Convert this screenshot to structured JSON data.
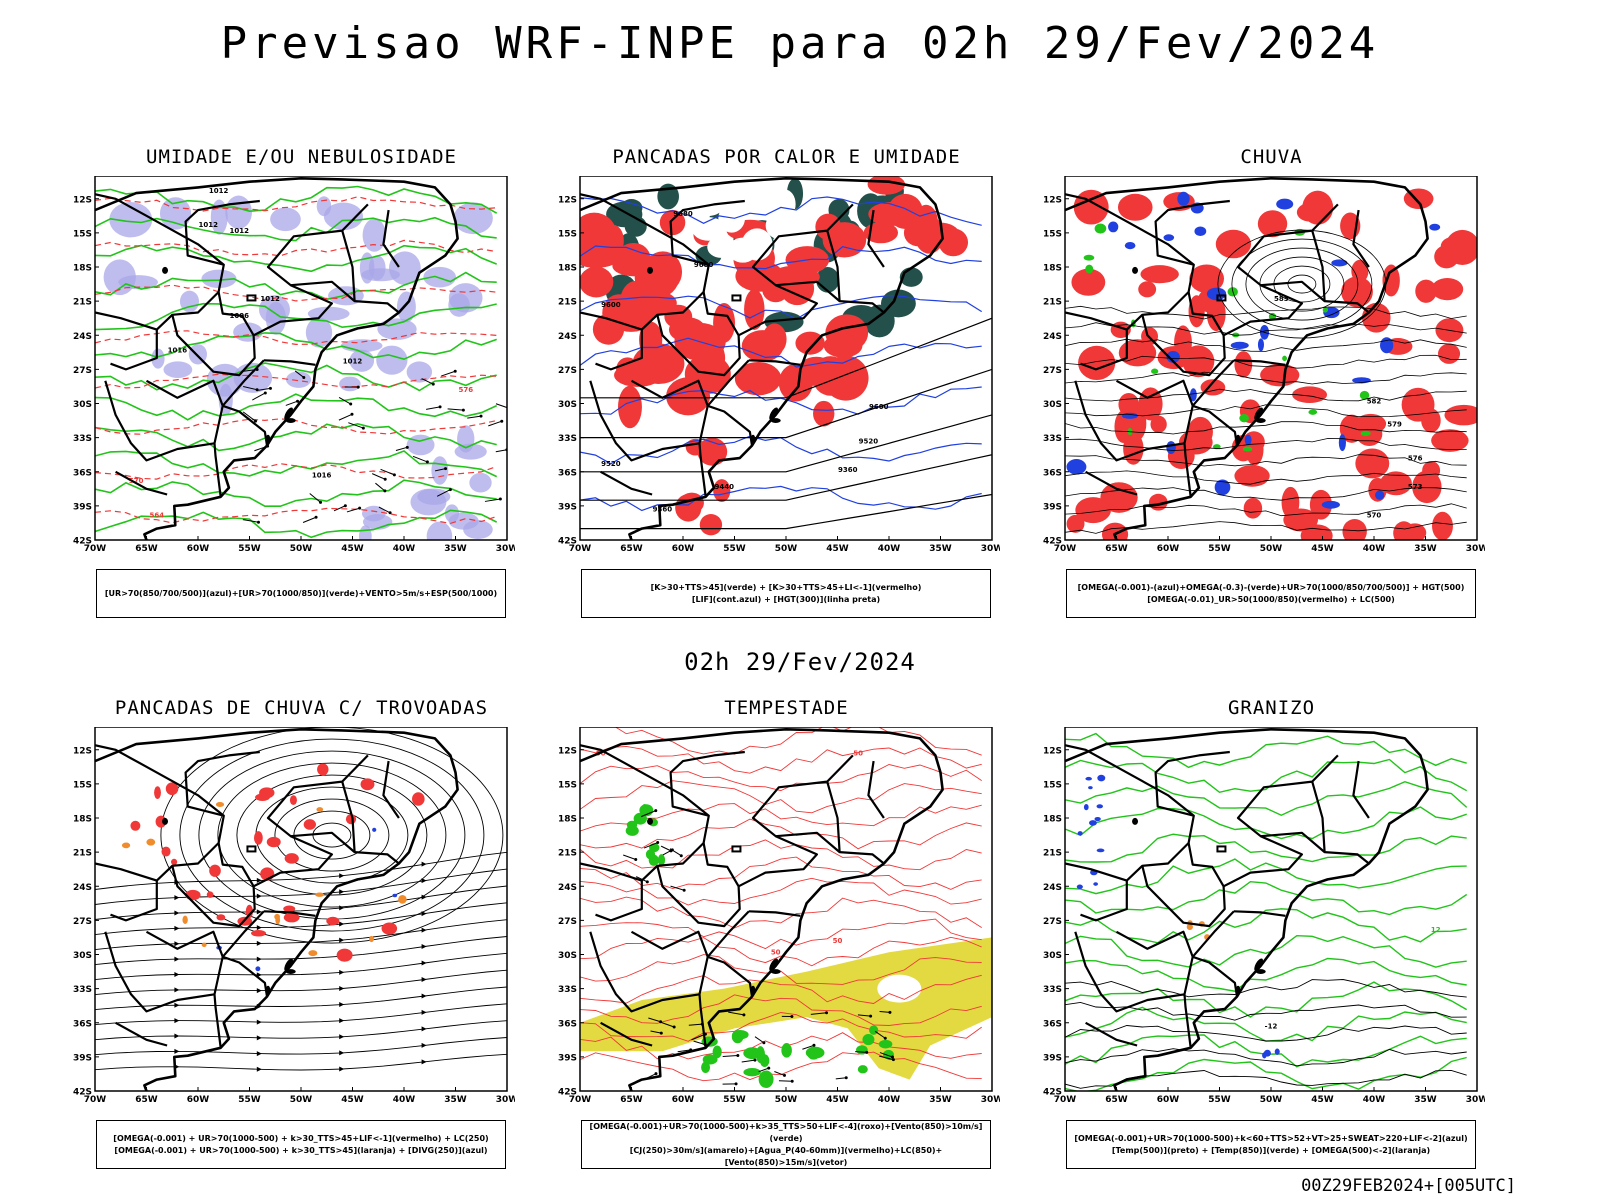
{
  "title": "Previsao WRF-INPE  para 02h 29/Fev/2024",
  "subtitle": "02h 29/Fev/2024",
  "footer": "00Z29FEB2024+[005UTC]",
  "axes": {
    "lat_labels": [
      "12S",
      "15S",
      "18S",
      "21S",
      "24S",
      "27S",
      "30S",
      "33S",
      "36S",
      "39S",
      "42S"
    ],
    "lon_labels": [
      "70W",
      "65W",
      "60W",
      "55W",
      "50W",
      "45W",
      "40W",
      "35W",
      "30W"
    ]
  },
  "colors": {
    "blue_humid": "#a9a7e8",
    "green": "#22c41a",
    "red": "#f03838",
    "dark_green": "#23504a",
    "yellow": "#e0d52c",
    "orange": "#f08c2c",
    "blue": "#2040e0"
  },
  "panels": [
    {
      "id": "umidade",
      "title": "UMIDADE E/OU NEBULOSIDADE",
      "legend": [
        "[UR>70(850/700/500)](azul)+[UR>70(1000/850)](verde)+VENTO>5m/s+ESP(500/1000)"
      ],
      "contour_labels": [
        "1012",
        "1012",
        "1012",
        "1012",
        "1006",
        "1012",
        "1016",
        "1016",
        "576",
        "570",
        "564"
      ]
    },
    {
      "id": "pancadas-calor",
      "title": "PANCADAS POR CALOR E UMIDADE",
      "legend": [
        "[K>30+TTS>45](verde) + [K>30+TTS>45+LI<-1](vermelho)",
        "[LIF](cont.azul) + [HGT(300)](linha preta)"
      ],
      "contour_labels": [
        "9680",
        "9680",
        "9600",
        "9600",
        "9520",
        "9520",
        "9440",
        "9360",
        "9360"
      ]
    },
    {
      "id": "chuva",
      "title": "CHUVA",
      "legend": [
        "[OMEGA(-0.001)-(azul)+OMEGA(-0.3)-(verde)+UR>70(1000/850/700/500)] + HGT(500)",
        "[OMEGA(-0.01)_UR>50(1000/850)(vermelho) + LC(500)"
      ],
      "contour_labels": [
        "585",
        "582",
        "579",
        "576",
        "573",
        "570"
      ]
    },
    {
      "id": "trovoadas",
      "title": "PANCADAS DE CHUVA C/ TROVOADAS",
      "legend": [
        "[OMEGA(-0.001) + UR>70(1000-500) + k>30_TTS>45+LIF<-1](vermelho) + LC(250)",
        "[OMEGA(-0.001) + UR>70(1000-500) + k>30_TTS>45](laranja) + [DIVG(250)](azul)"
      ],
      "contour_labels": []
    },
    {
      "id": "tempestade",
      "title": "TEMPESTADE",
      "legend": [
        "[OMEGA(-0.001)+UR>70(1000-500)+k>35_TTS>50+LIF<-4](roxo)+[Vento(850)>10m/s](verde)",
        "[CJ(250)>30m/s](amarelo)+[Agua_P(40-60mm)](vermelho)+LC(850)+[Vento(850)>15m/s](vetor)"
      ],
      "contour_labels": [
        "50",
        "50",
        "50",
        "50"
      ]
    },
    {
      "id": "granizo",
      "title": "GRANIZO",
      "legend": [
        "[OMEGA(-0.001)+UR>70(1000-500)+k<60+TTS>52+VT>25+SWEAT>220+LIF<-2](azul)",
        "[Temp(500)](preto) + [Temp(850)](verde) + [OMEGA(500)<-2](laranja)"
      ],
      "contour_labels": [
        "-12",
        "12"
      ]
    }
  ]
}
